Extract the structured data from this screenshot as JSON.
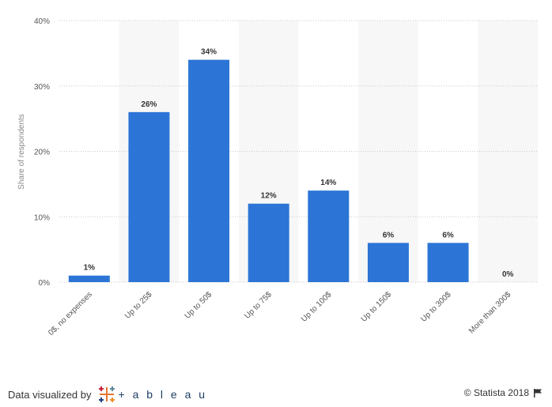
{
  "chart_data": {
    "type": "bar",
    "categories": [
      "0$, no expenses",
      "Up to 25$",
      "Up to 50$",
      "Up to 75$",
      "Up to 100$",
      "Up to 150$",
      "Up to 300$",
      "More than 300$"
    ],
    "values": [
      1,
      26,
      34,
      12,
      14,
      6,
      6,
      0
    ],
    "value_labels": [
      "1%",
      "26%",
      "34%",
      "12%",
      "14%",
      "6%",
      "6%",
      "0%"
    ],
    "ylabel": "Share of respondents",
    "ylim": [
      0,
      40
    ],
    "yticks": [
      0,
      10,
      20,
      30,
      40
    ],
    "ytick_labels": [
      "0%",
      "10%",
      "20%",
      "30%",
      "40%"
    ],
    "grid": true,
    "colors": {
      "bar": "#2c75d6",
      "band": "#f7f7f7",
      "grid": "#c9c9c9"
    }
  },
  "footer": {
    "visualized_by": "Data visualized by",
    "tableau_word": "+ a b l e a u",
    "copyright": "© Statista 2018"
  }
}
